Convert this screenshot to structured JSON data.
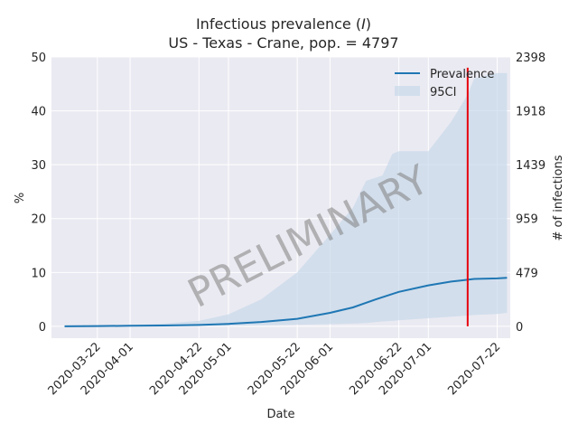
{
  "chart_data": {
    "type": "line",
    "title": "Infectious prevalence (I)",
    "title_main": "Infectious prevalence (",
    "title_var": "I",
    "title_close": ")",
    "subtitle": "US - Texas - Crane, pop. = 4797",
    "xlabel": "Date",
    "ylabel": "%",
    "ylabel_right": "# of infections",
    "watermark": "PRELIMINARY",
    "xlim": [
      "2020-03-08",
      "2020-07-26"
    ],
    "ylim": [
      -2.2,
      50
    ],
    "y_ticks": [
      "0",
      "10",
      "20",
      "30",
      "40",
      "50"
    ],
    "y_right_ticks": [
      "0",
      "479",
      "959",
      "1439",
      "1918",
      "2398"
    ],
    "x_ticks": [
      "2020-03-22",
      "2020-04-01",
      "2020-04-22",
      "2020-05-01",
      "2020-05-22",
      "2020-06-01",
      "2020-06-22",
      "2020-07-01",
      "2020-07-22"
    ],
    "grid": true,
    "legend": "top-right",
    "legend_entries": [
      "Prevalence",
      "95CI"
    ],
    "vline_date": "2020-07-13",
    "colors": {
      "line": "#1f77b4",
      "band": "#c8d8ea",
      "vline": "#e8000b",
      "background": "#eaeaf2",
      "grid": "#ffffff"
    },
    "series": [
      {
        "name": "Prevalence",
        "x": [
          "2020-03-12",
          "2020-03-22",
          "2020-04-01",
          "2020-04-11",
          "2020-04-22",
          "2020-05-01",
          "2020-05-11",
          "2020-05-22",
          "2020-06-01",
          "2020-06-08",
          "2020-06-15",
          "2020-06-22",
          "2020-07-01",
          "2020-07-08",
          "2020-07-15",
          "2020-07-22",
          "2020-07-25"
        ],
        "y": [
          0.0,
          0.05,
          0.1,
          0.15,
          0.25,
          0.45,
          0.8,
          1.4,
          2.5,
          3.5,
          5.0,
          6.4,
          7.6,
          8.3,
          8.8,
          8.9,
          9.0
        ]
      }
    ],
    "ci_band": {
      "name": "95CI",
      "x": [
        "2020-03-12",
        "2020-03-22",
        "2020-04-01",
        "2020-04-11",
        "2020-04-22",
        "2020-05-01",
        "2020-05-11",
        "2020-05-22",
        "2020-06-01",
        "2020-06-08",
        "2020-06-12",
        "2020-06-17",
        "2020-06-20",
        "2020-06-22",
        "2020-07-01",
        "2020-07-08",
        "2020-07-13",
        "2020-07-15",
        "2020-07-22",
        "2020-07-25"
      ],
      "upper": [
        0.0,
        0.1,
        0.2,
        0.5,
        1.0,
        2.2,
        5.0,
        10.0,
        17.0,
        22.0,
        27.0,
        28.0,
        32.0,
        32.5,
        32.5,
        38.0,
        43.0,
        46.0,
        47.0,
        47.0
      ],
      "lower": [
        0.0,
        0.0,
        0.0,
        0.0,
        0.05,
        0.1,
        0.2,
        0.3,
        0.4,
        0.5,
        0.6,
        0.9,
        1.0,
        1.1,
        1.5,
        1.8,
        2.0,
        2.1,
        2.3,
        2.5
      ]
    }
  }
}
